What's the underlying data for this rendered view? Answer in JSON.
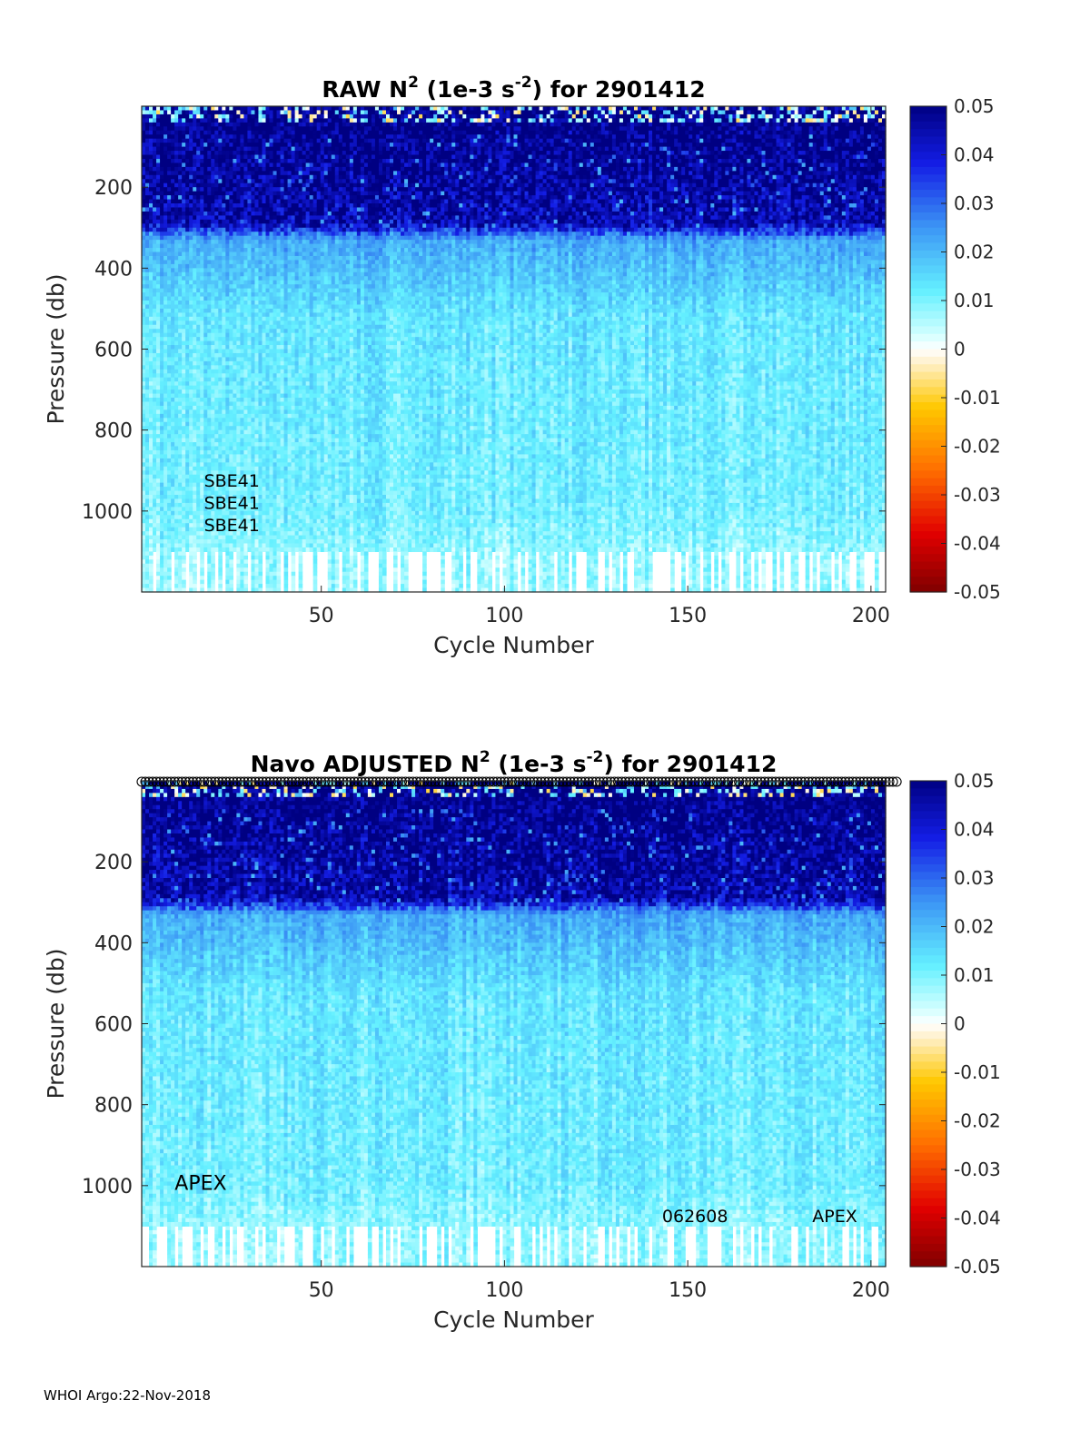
{
  "footer": "WHOI Argo:22-Nov-2018",
  "chart_data": [
    {
      "type": "heatmap",
      "title": {
        "prefix": "RAW N",
        "sup1": "2",
        "mid": " (1e-3 s",
        "sup2": "-2",
        "suffix": ") for 2901412"
      },
      "xlabel": "Cycle Number",
      "ylabel": "Pressure (db)",
      "xlim": [
        1,
        204
      ],
      "ylim": [
        1200,
        0
      ],
      "y_reversed": true,
      "xticks": [
        50,
        100,
        150,
        200
      ],
      "yticks": [
        200,
        400,
        600,
        800,
        1000
      ],
      "colorbar": {
        "min": -0.05,
        "max": 0.05,
        "ticks": [
          0.05,
          0.04,
          0.03,
          0.02,
          0.01,
          0,
          -0.01,
          -0.02,
          -0.03,
          -0.04,
          -0.05
        ],
        "tick_labels": [
          "0.05",
          "0.04",
          "0.03",
          "0.02",
          "0.01",
          "0",
          "-0.01",
          "-0.02",
          "-0.03",
          "-0.04",
          "-0.05"
        ],
        "colormap": "jet-white-center"
      },
      "value_profile": [
        {
          "p": 0,
          "v": 0.05
        },
        {
          "p": 60,
          "v": 0.05
        },
        {
          "p": 290,
          "v": 0.045
        },
        {
          "p": 330,
          "v": 0.022
        },
        {
          "p": 420,
          "v": 0.018
        },
        {
          "p": 520,
          "v": 0.013
        },
        {
          "p": 700,
          "v": 0.012
        },
        {
          "p": 1000,
          "v": 0.011
        },
        {
          "p": 1100,
          "v": 0.008
        },
        {
          "p": 1200,
          "v": 0.008
        }
      ],
      "surface_noise_depth": 40,
      "deep_gap_start": 1100,
      "markers_top": false,
      "annotations": [
        {
          "text": "SBE41",
          "cycle": 18,
          "pressure": 940,
          "size": "small"
        },
        {
          "text": "SBE41",
          "cycle": 18,
          "pressure": 995,
          "size": "small"
        },
        {
          "text": "SBE41",
          "cycle": 18,
          "pressure": 1050,
          "size": "small"
        }
      ],
      "seed": 7
    },
    {
      "type": "heatmap",
      "title": {
        "prefix": "Navo  ADJUSTED N",
        "sup1": "2",
        "mid": " (1e-3 s",
        "sup2": "-2",
        "suffix": ") for 2901412"
      },
      "xlabel": "Cycle Number",
      "ylabel": "Pressure (db)",
      "xlim": [
        1,
        204
      ],
      "ylim": [
        1200,
        0
      ],
      "y_reversed": true,
      "xticks": [
        50,
        100,
        150,
        200
      ],
      "yticks": [
        200,
        400,
        600,
        800,
        1000
      ],
      "colorbar": {
        "min": -0.05,
        "max": 0.05,
        "ticks": [
          0.05,
          0.04,
          0.03,
          0.02,
          0.01,
          0,
          -0.01,
          -0.02,
          -0.03,
          -0.04,
          -0.05
        ],
        "tick_labels": [
          "0.05",
          "0.04",
          "0.03",
          "0.02",
          "0.01",
          "0",
          "-0.01",
          "-0.02",
          "-0.03",
          "-0.04",
          "-0.05"
        ],
        "colormap": "jet-white-center"
      },
      "value_profile": [
        {
          "p": 0,
          "v": 0.05
        },
        {
          "p": 60,
          "v": 0.05
        },
        {
          "p": 290,
          "v": 0.045
        },
        {
          "p": 330,
          "v": 0.022
        },
        {
          "p": 420,
          "v": 0.018
        },
        {
          "p": 520,
          "v": 0.013
        },
        {
          "p": 700,
          "v": 0.012
        },
        {
          "p": 1000,
          "v": 0.011
        },
        {
          "p": 1100,
          "v": 0.008
        },
        {
          "p": 1200,
          "v": 0.008
        }
      ],
      "surface_noise_depth": 40,
      "deep_gap_start": 1100,
      "markers_top": true,
      "annotations": [
        {
          "text": "APEX",
          "cycle": 10,
          "pressure": 1010,
          "size": "large"
        },
        {
          "text": "062608",
          "cycle": 143,
          "pressure": 1090,
          "size": "small"
        },
        {
          "text": "APEX",
          "cycle": 184,
          "pressure": 1090,
          "size": "small"
        }
      ],
      "seed": 11
    }
  ]
}
